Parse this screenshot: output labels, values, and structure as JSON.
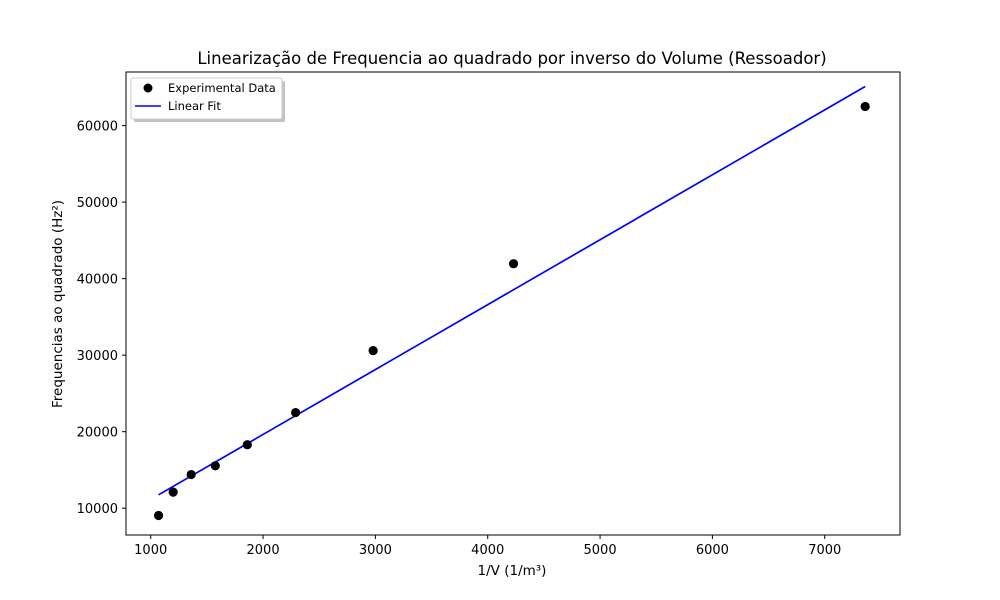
{
  "chart_data": {
    "type": "scatter",
    "title": "Linearização de Frequencia ao quadrado por inverso do Volume (Ressoador)",
    "xlabel": "1/V (1/m³)",
    "ylabel": "Frequencias ao quadrado (Hz²)",
    "xlim": [
      780,
      7670
    ],
    "ylim": [
      6500,
      67000
    ],
    "xticks": [
      1000,
      2000,
      3000,
      4000,
      5000,
      6000,
      7000
    ],
    "yticks": [
      10000,
      20000,
      30000,
      40000,
      50000,
      60000
    ],
    "grid": false,
    "legend_position": "top-left",
    "series": [
      {
        "name": "Experimental Data",
        "kind": "scatter",
        "color": "#000000",
        "points": [
          [
            1070,
            9050
          ],
          [
            1200,
            12100
          ],
          [
            1360,
            14400
          ],
          [
            1575,
            15550
          ],
          [
            1860,
            18300
          ],
          [
            2290,
            22500
          ],
          [
            2980,
            30600
          ],
          [
            4230,
            41950
          ],
          [
            7360,
            62500
          ]
        ]
      },
      {
        "name": "Linear Fit",
        "kind": "line",
        "color": "#0000ff",
        "points": [
          [
            1070,
            11750
          ],
          [
            7360,
            65100
          ]
        ]
      }
    ]
  }
}
